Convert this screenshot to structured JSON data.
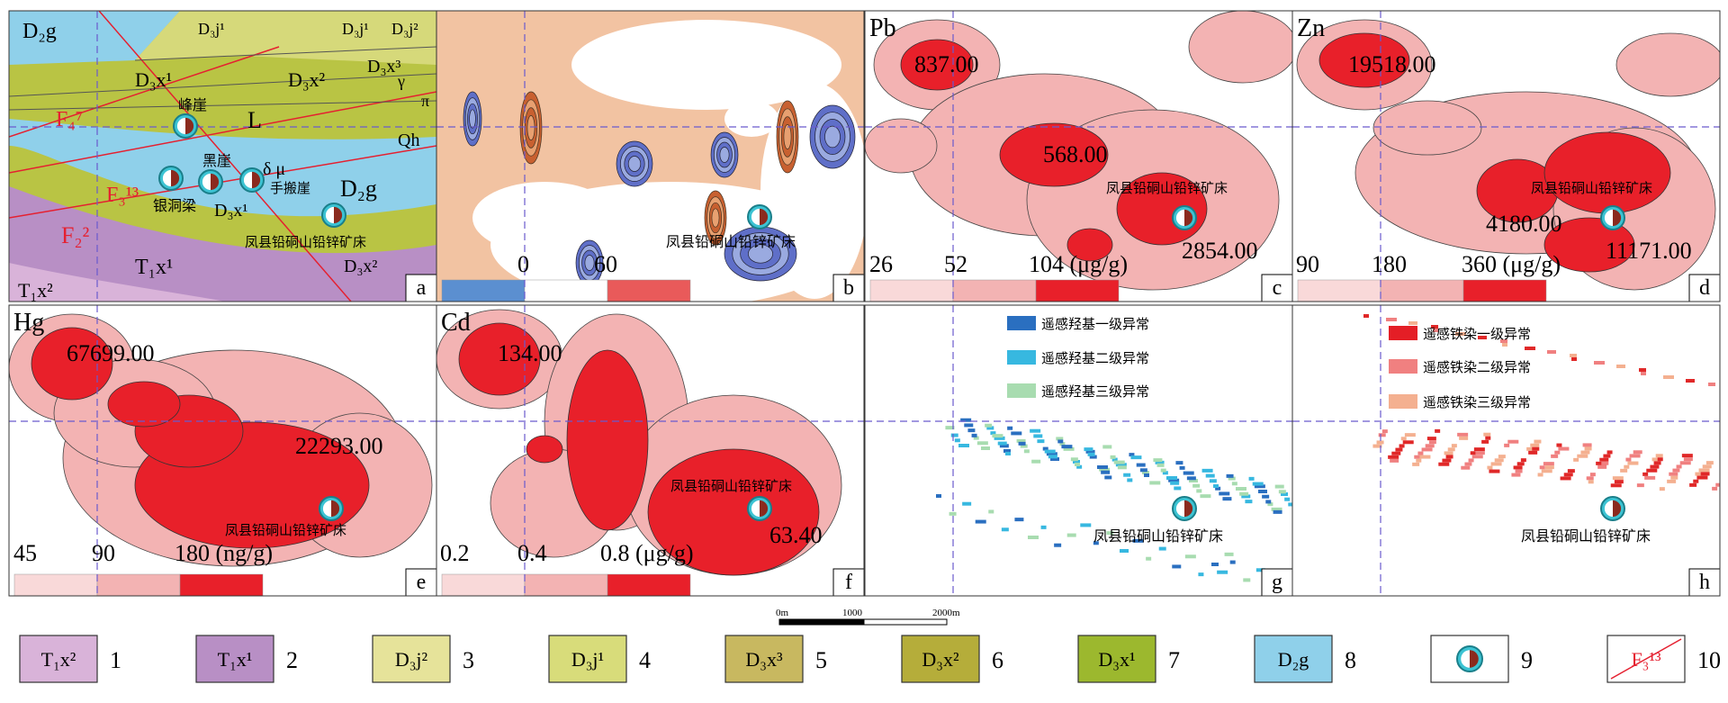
{
  "panels": [
    {
      "label": "a",
      "texts": [
        "D₂g",
        "D₃j¹",
        "D₃j¹",
        "D₃j²",
        "D₃x¹",
        "D₃x²",
        "D₃x³",
        "γ",
        "π",
        "F₄⁷",
        "峰崖",
        "L",
        "Qh",
        "黑崖",
        "δ μ",
        "手搬崖",
        "F₃¹³",
        "银洞梁",
        "D₃x¹",
        "D₂g",
        "F₂²",
        "凤县铅硐山铅锌矿床",
        "T₁x¹",
        "D₃x²",
        "T₁x²"
      ]
    },
    {
      "label": "b",
      "texts": [
        "0",
        "60",
        "凤县铅硐山铅锌矿床"
      ]
    },
    {
      "label": "c",
      "texts": [
        "Pb",
        "837.00",
        "568.00",
        "凤县铅硐山铅锌矿床",
        "2854.00",
        "26",
        "52",
        "104 (μg/g)"
      ]
    },
    {
      "label": "d",
      "texts": [
        "Zn",
        "19518.00",
        "凤县铅硐山铅锌矿床",
        "4180.00",
        "11171.00",
        "90",
        "180",
        "360 (μg/g)"
      ]
    },
    {
      "label": "e",
      "texts": [
        "Hg",
        "67699.00",
        "22293.00",
        "凤县铅硐山铅锌矿床",
        "45",
        "90",
        "180 (ng/g)"
      ]
    },
    {
      "label": "f",
      "texts": [
        "Cd",
        "134.00",
        "凤县铅硐山铅锌矿床",
        "63.40",
        "0.2",
        "0.4",
        "0.8 (μg/g)"
      ]
    },
    {
      "label": "g",
      "texts": [
        "遥感羟基一级异常",
        "遥感羟基二级异常",
        "遥感羟基三级异常",
        "凤县铅硐山铅锌矿床"
      ]
    },
    {
      "label": "h",
      "texts": [
        "遥感铁染一级异常",
        "遥感铁染二级异常",
        "遥感铁染三级异常",
        "凤县铅硐山铅锌矿床"
      ]
    }
  ],
  "scale_bar": [
    "0m",
    "1000",
    "2000m"
  ],
  "legend": [
    {
      "symbol": "T₁x²",
      "number": "1"
    },
    {
      "symbol": "T₁x¹",
      "number": "2"
    },
    {
      "symbol": "D₃j²",
      "number": "3"
    },
    {
      "symbol": "D₃j¹",
      "number": "4"
    },
    {
      "symbol": "D₃x³",
      "number": "5"
    },
    {
      "symbol": "D₃x²",
      "number": "6"
    },
    {
      "symbol": "D₃x¹",
      "number": "7"
    },
    {
      "symbol": "D₂g",
      "number": "8"
    },
    {
      "symbol": "",
      "number": "9"
    },
    {
      "symbol": "F₃¹³",
      "number": "10"
    }
  ]
}
